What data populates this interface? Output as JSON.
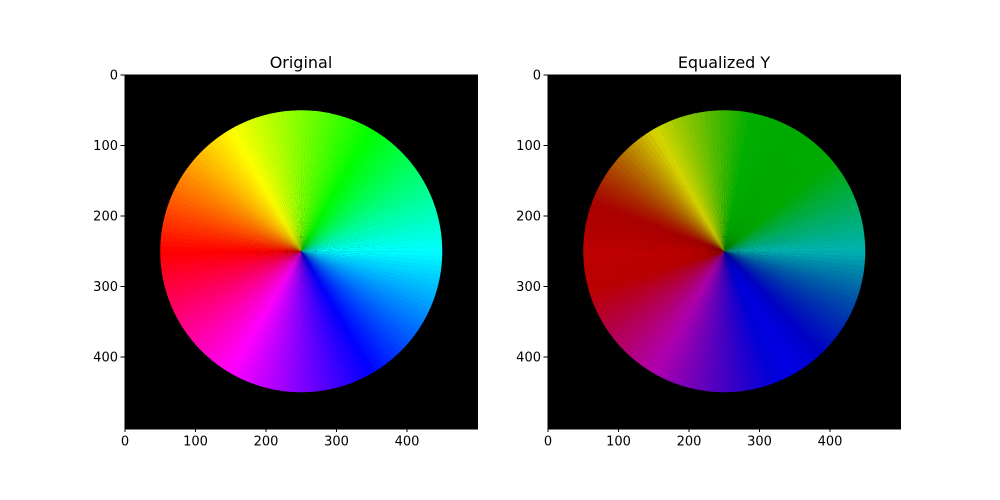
{
  "figure": {
    "background": "#ffffff"
  },
  "chart_data": [
    {
      "type": "heatmap",
      "title": "Original",
      "image_size": [
        500,
        500
      ],
      "xlim": [
        0,
        500
      ],
      "ylim": [
        500,
        0
      ],
      "x_ticks": [
        0,
        100,
        200,
        300,
        400
      ],
      "y_ticks": [
        0,
        100,
        200,
        300,
        400
      ],
      "background_color": "#000000",
      "disc": {
        "center": [
          250,
          250
        ],
        "radius": 200
      },
      "content": "hue color wheel",
      "variant": "original"
    },
    {
      "type": "heatmap",
      "title": "Equalized Y",
      "image_size": [
        500,
        500
      ],
      "xlim": [
        0,
        500
      ],
      "ylim": [
        500,
        0
      ],
      "x_ticks": [
        0,
        100,
        200,
        300,
        400
      ],
      "y_ticks": [
        0,
        100,
        200,
        300,
        400
      ],
      "background_color": "#000000",
      "disc": {
        "center": [
          250,
          250
        ],
        "radius": 200
      },
      "content": "hue color wheel with equalized luma",
      "variant": "equalized"
    }
  ]
}
